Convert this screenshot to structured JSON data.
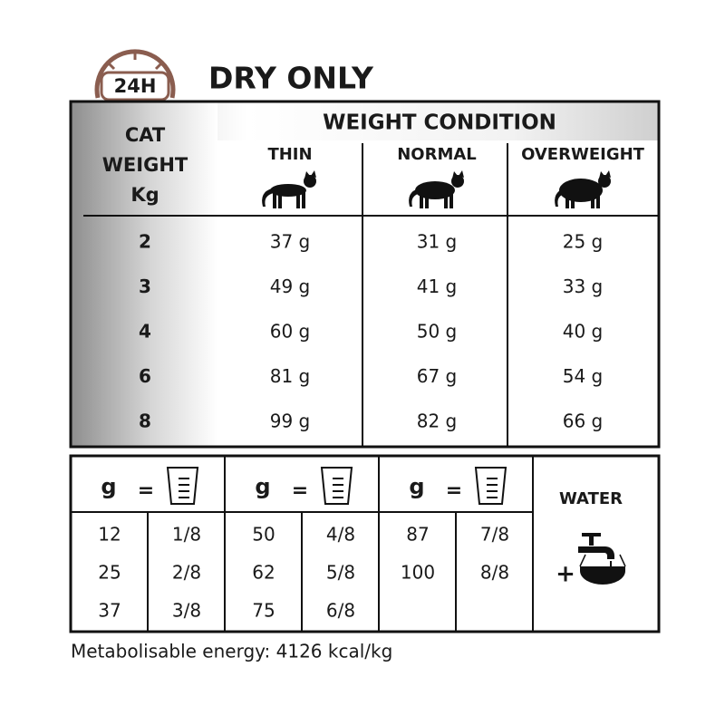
{
  "header": {
    "badge": "24H",
    "title": "DRY ONLY"
  },
  "feeding_table": {
    "row_header": [
      "CAT",
      "WEIGHT",
      "Kg"
    ],
    "group_header": "WEIGHT CONDITION",
    "columns": [
      "THIN",
      "NORMAL",
      "OVERWEIGHT"
    ],
    "rows": [
      [
        "2",
        "37 g",
        "31 g",
        "25 g"
      ],
      [
        "3",
        "49 g",
        "41 g",
        "33 g"
      ],
      [
        "4",
        "60 g",
        "50 g",
        "40 g"
      ],
      [
        "6",
        "81 g",
        "67 g",
        "54 g"
      ],
      [
        "8",
        "99 g",
        "82 g",
        "66 g"
      ]
    ]
  },
  "conversion": {
    "groups": [
      {
        "unit": "g",
        "equals": "=",
        "rows": [
          [
            "12",
            "1/8"
          ],
          [
            "25",
            "2/8"
          ],
          [
            "37",
            "3/8"
          ]
        ]
      },
      {
        "unit": "g",
        "equals": "=",
        "rows": [
          [
            "50",
            "4/8"
          ],
          [
            "62",
            "5/8"
          ],
          [
            "75",
            "6/8"
          ]
        ]
      },
      {
        "unit": "g",
        "equals": "=",
        "rows": [
          [
            "87",
            "7/8"
          ],
          [
            "100",
            "8/8"
          ]
        ]
      }
    ],
    "water_label": "WATER",
    "plus": "+"
  },
  "footer": "Metabolisable energy: 4126 kcal/kg"
}
